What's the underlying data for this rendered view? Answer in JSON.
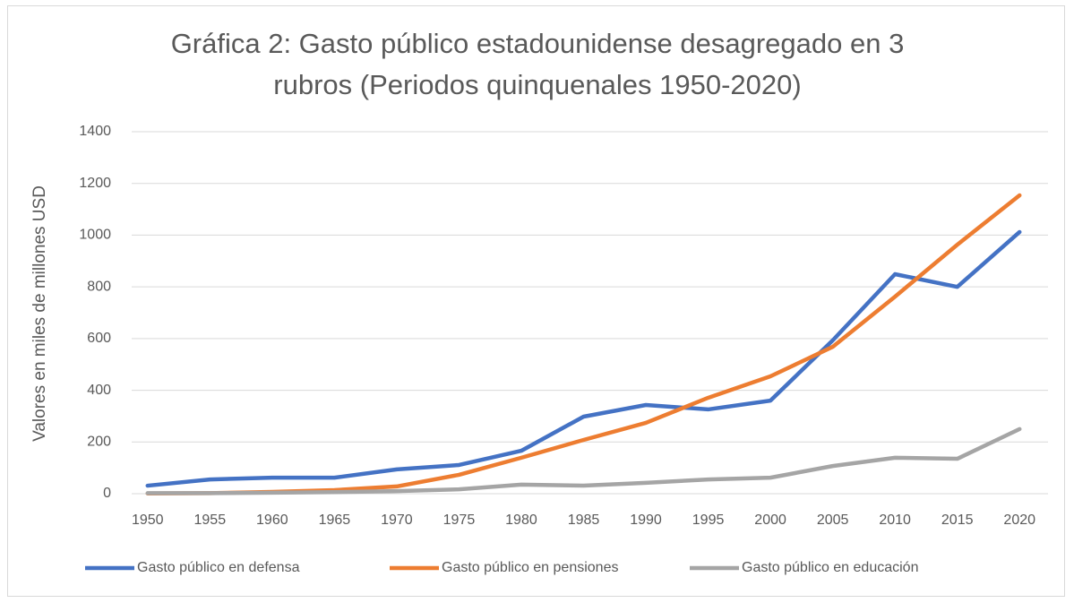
{
  "chart_data": {
    "type": "line",
    "title": "Gráfica 2: Gasto público estadounidense desagregado en 3 rubros (Periodos quinquenales 1950-2020)",
    "y_label": "Valores en miles de millones USD",
    "categories": [
      "1950",
      "1955",
      "1960",
      "1965",
      "1970",
      "1975",
      "1980",
      "1985",
      "1990",
      "1995",
      "2000",
      "2005",
      "2010",
      "2015",
      "2020"
    ],
    "series": [
      {
        "name": "Gasto público en defensa",
        "color": "#4472c4",
        "values": [
          31,
          55,
          62,
          62,
          94,
          111,
          166,
          298,
          343,
          326,
          360,
          593,
          849,
          800,
          1012
        ]
      },
      {
        "name": "Gasto público en pensiones",
        "color": "#ed7d31",
        "values": [
          1,
          2,
          7,
          14,
          28,
          73,
          139,
          208,
          274,
          371,
          454,
          568,
          762,
          963,
          1154
        ]
      },
      {
        "name": "Gasto público en educación",
        "color": "#a5a5a5",
        "values": [
          2,
          2,
          4,
          6,
          10,
          17,
          35,
          31,
          42,
          55,
          62,
          107,
          139,
          135,
          250
        ]
      }
    ],
    "ylim": [
      0,
      1400
    ],
    "yticks": [
      0,
      200,
      400,
      600,
      800,
      1000,
      1200,
      1400
    ],
    "grid": true,
    "legend": "bottom"
  }
}
